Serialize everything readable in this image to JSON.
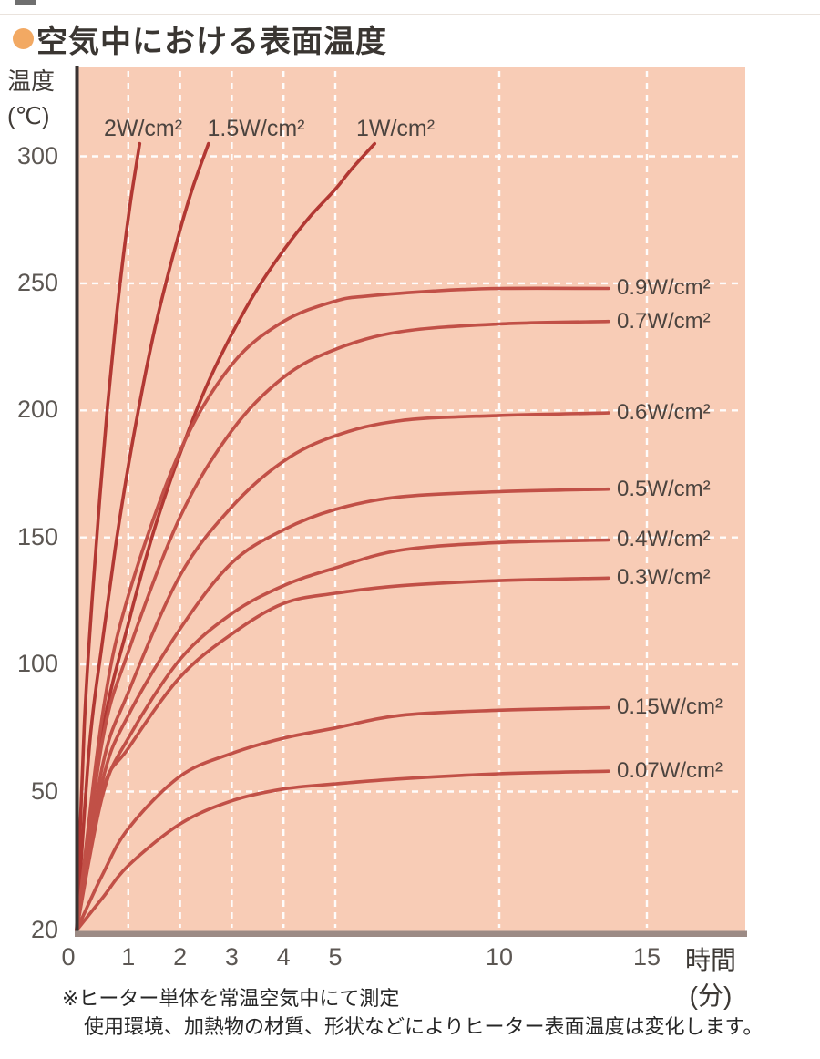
{
  "header": {
    "title": "空気中における表面温度",
    "bullet_color": "#f2a963"
  },
  "footnotes": {
    "line1": "※ヒーター単体を常温空気中にて測定",
    "line2": "使用環境、加熱物の材質、形状などによりヒーター表面温度は変化します。"
  },
  "colors": {
    "plot_background": "#f8ccb6",
    "grid_line": "#ffffff",
    "y_axis_line": "#3a3332",
    "x_axis_band": "#9c8b85",
    "curve_steep": "#b23833",
    "curve_plateau": "#c15047",
    "tick_text": "#5c5753",
    "label_text": "#4c443f"
  },
  "chart_data": {
    "type": "line",
    "title": "空気中における表面温度",
    "ylabel": "温度(℃)",
    "xlabel": "時間(分)",
    "ylabel_lines": [
      "温度",
      "(℃)"
    ],
    "xlabel_lines": [
      "時間",
      "(分)"
    ],
    "x_ticks": [
      0,
      1,
      2,
      3,
      4,
      5,
      10,
      15
    ],
    "y_ticks": [
      20,
      50,
      100,
      150,
      200,
      250,
      300
    ],
    "xlim": [
      0,
      15
    ],
    "ylim": [
      20,
      310
    ],
    "x_axis_scale": "piecewise: 0-5 min expanded, 5-15 min compressed",
    "grid": {
      "style": "dashed",
      "color": "#ffffff"
    },
    "plot_background": "#f8ccb6",
    "series": [
      {
        "name": "2W/cm²",
        "power_w_per_cm2": 2,
        "label_position": "top",
        "color": "#b23833",
        "points": [
          [
            0,
            20
          ],
          [
            0.15,
            76
          ],
          [
            0.3,
            125
          ],
          [
            0.45,
            166
          ],
          [
            0.6,
            202
          ],
          [
            0.75,
            233
          ],
          [
            0.9,
            260
          ],
          [
            1.05,
            283
          ],
          [
            1.22,
            305
          ]
        ]
      },
      {
        "name": "1.5W/cm²",
        "power_w_per_cm2": 1.5,
        "label_position": "top",
        "color": "#b23833",
        "points": [
          [
            0,
            20
          ],
          [
            0.25,
            68
          ],
          [
            0.5,
            109
          ],
          [
            0.75,
            146
          ],
          [
            1,
            178
          ],
          [
            1.25,
            206
          ],
          [
            1.5,
            231
          ],
          [
            1.75,
            252
          ],
          [
            2,
            271
          ],
          [
            2.25,
            288
          ],
          [
            2.55,
            305
          ]
        ]
      },
      {
        "name": "1W/cm²",
        "power_w_per_cm2": 1,
        "label_position": "top",
        "color": "#b23833",
        "points": [
          [
            0,
            20
          ],
          [
            0.5,
            73
          ],
          [
            1,
            116
          ],
          [
            1.5,
            153
          ],
          [
            2,
            183
          ],
          [
            2.5,
            209
          ],
          [
            3,
            230
          ],
          [
            3.5,
            248
          ],
          [
            4,
            263
          ],
          [
            4.5,
            276
          ],
          [
            5,
            287
          ],
          [
            5.5,
            295
          ],
          [
            6.2,
            305
          ]
        ]
      },
      {
        "name": "0.9W/cm²",
        "power_w_per_cm2": 0.9,
        "label_position": "right",
        "color": "#c15047",
        "plateau_temp_c": 248,
        "points": [
          [
            0,
            20
          ],
          [
            0.5,
            80
          ],
          [
            1,
            127
          ],
          [
            2,
            184
          ],
          [
            3,
            218
          ],
          [
            4,
            235
          ],
          [
            5,
            243
          ],
          [
            6,
            245
          ],
          [
            8,
            247
          ],
          [
            10,
            248
          ],
          [
            13.7,
            248
          ]
        ]
      },
      {
        "name": "0.7W/cm²",
        "power_w_per_cm2": 0.7,
        "label_position": "right",
        "color": "#c15047",
        "plateau_temp_c": 235,
        "points": [
          [
            0,
            20
          ],
          [
            0.5,
            70
          ],
          [
            1,
            105
          ],
          [
            2,
            158
          ],
          [
            3,
            192
          ],
          [
            4,
            213
          ],
          [
            5,
            224
          ],
          [
            7,
            231
          ],
          [
            10,
            234
          ],
          [
            13.7,
            235
          ]
        ]
      },
      {
        "name": "0.6W/cm²",
        "power_w_per_cm2": 0.6,
        "label_position": "right",
        "color": "#c15047",
        "plateau_temp_c": 199,
        "points": [
          [
            0,
            20
          ],
          [
            0.5,
            60
          ],
          [
            1,
            89
          ],
          [
            2,
            135
          ],
          [
            3,
            162
          ],
          [
            4,
            180
          ],
          [
            5,
            190
          ],
          [
            7,
            196
          ],
          [
            10,
            198
          ],
          [
            13.7,
            199
          ]
        ]
      },
      {
        "name": "0.5W/cm²",
        "power_w_per_cm2": 0.5,
        "label_position": "right",
        "color": "#c15047",
        "plateau_temp_c": 169,
        "points": [
          [
            0,
            20
          ],
          [
            0.5,
            54
          ],
          [
            1,
            80
          ],
          [
            2,
            114
          ],
          [
            3,
            140
          ],
          [
            4,
            153
          ],
          [
            5,
            161
          ],
          [
            7,
            166
          ],
          [
            10,
            168
          ],
          [
            13.7,
            169
          ]
        ]
      },
      {
        "name": "0.4W/cm²",
        "power_w_per_cm2": 0.4,
        "label_position": "right",
        "color": "#c15047",
        "plateau_temp_c": 149,
        "points": [
          [
            0,
            20
          ],
          [
            0.5,
            49
          ],
          [
            1,
            71
          ],
          [
            2,
            102
          ],
          [
            3,
            120
          ],
          [
            4,
            131
          ],
          [
            5,
            138
          ],
          [
            7,
            145
          ],
          [
            10,
            148
          ],
          [
            13.7,
            149
          ]
        ]
      },
      {
        "name": "0.3W/cm²",
        "power_w_per_cm2": 0.3,
        "label_position": "right",
        "color": "#c15047",
        "plateau_temp_c": 134,
        "points": [
          [
            0,
            20
          ],
          [
            0.5,
            50
          ],
          [
            1,
            67
          ],
          [
            2,
            95
          ],
          [
            3,
            112
          ],
          [
            4,
            124
          ],
          [
            5,
            128
          ],
          [
            7,
            131
          ],
          [
            10,
            133
          ],
          [
            13.7,
            134
          ]
        ]
      },
      {
        "name": "0.15W/cm²",
        "power_w_per_cm2": 0.15,
        "label_position": "right",
        "color": "#c15047",
        "plateau_temp_c": 83,
        "points": [
          [
            0,
            20
          ],
          [
            0.5,
            32
          ],
          [
            1,
            42
          ],
          [
            2,
            56
          ],
          [
            3,
            65
          ],
          [
            4,
            71
          ],
          [
            5,
            75
          ],
          [
            7,
            80
          ],
          [
            10,
            82
          ],
          [
            13.7,
            83
          ]
        ]
      },
      {
        "name": "0.07W/cm²",
        "power_w_per_cm2": 0.07,
        "label_position": "right",
        "color": "#c15047",
        "plateau_temp_c": 58,
        "points": [
          [
            0,
            20
          ],
          [
            0.5,
            27
          ],
          [
            1,
            34
          ],
          [
            2,
            43
          ],
          [
            3,
            48
          ],
          [
            4,
            51
          ],
          [
            5,
            53
          ],
          [
            7,
            55
          ],
          [
            10,
            57
          ],
          [
            13.7,
            58
          ]
        ]
      }
    ]
  }
}
